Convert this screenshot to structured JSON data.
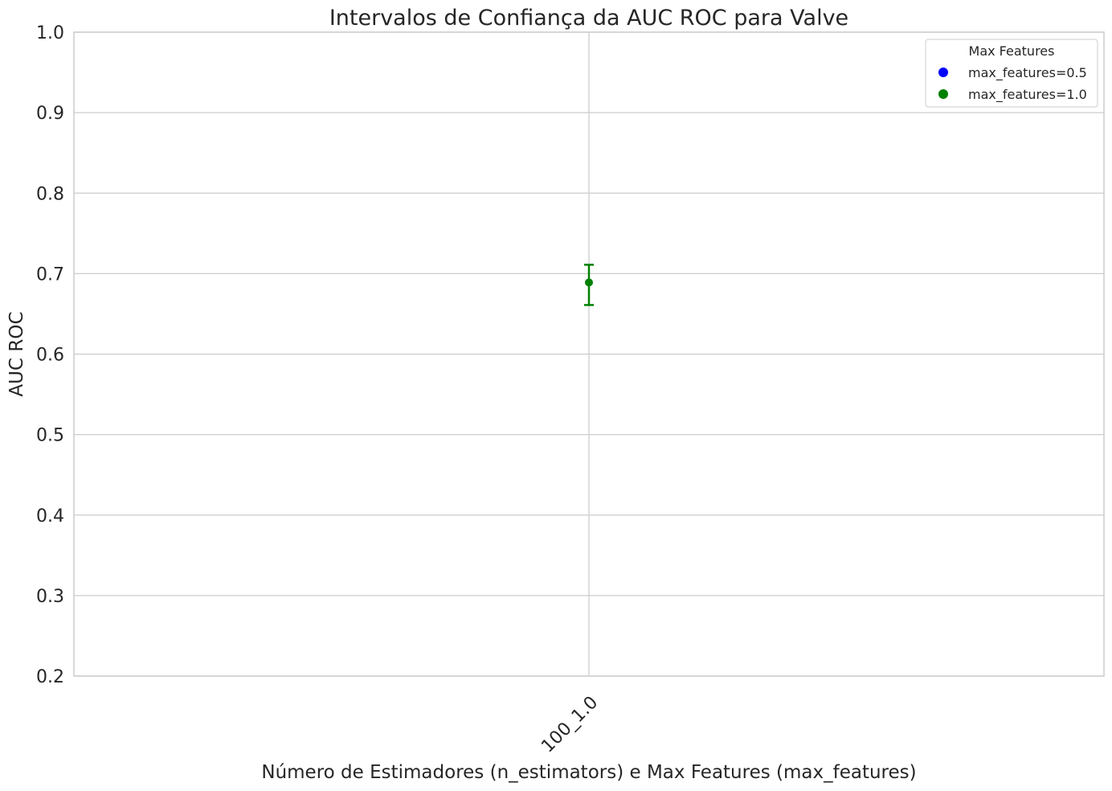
{
  "chart_data": {
    "type": "scatter",
    "title": "Intervalos de Confiança da AUC ROC para Valve",
    "xlabel": "Número de Estimadores (n_estimators) e Max Features (max_features)",
    "ylabel": "AUC ROC",
    "categories": [
      "100_1.0"
    ],
    "ylim": [
      0.2,
      1.0
    ],
    "yticks": [
      "0.2",
      "0.3",
      "0.4",
      "0.5",
      "0.6",
      "0.7",
      "0.8",
      "0.9",
      "1.0"
    ],
    "grid": true,
    "legend": {
      "title": "Max Features",
      "placement": "top-right",
      "entries": [
        {
          "label": "max_features=0.5",
          "color": "#0000ff"
        },
        {
          "label": "max_features=1.0",
          "color": "#008000"
        }
      ]
    },
    "series": [
      {
        "name": "max_features=1.0",
        "color": "#008000",
        "points": [
          {
            "category": "100_1.0",
            "value": 0.689,
            "ci_low": 0.661,
            "ci_high": 0.711
          }
        ]
      }
    ]
  }
}
